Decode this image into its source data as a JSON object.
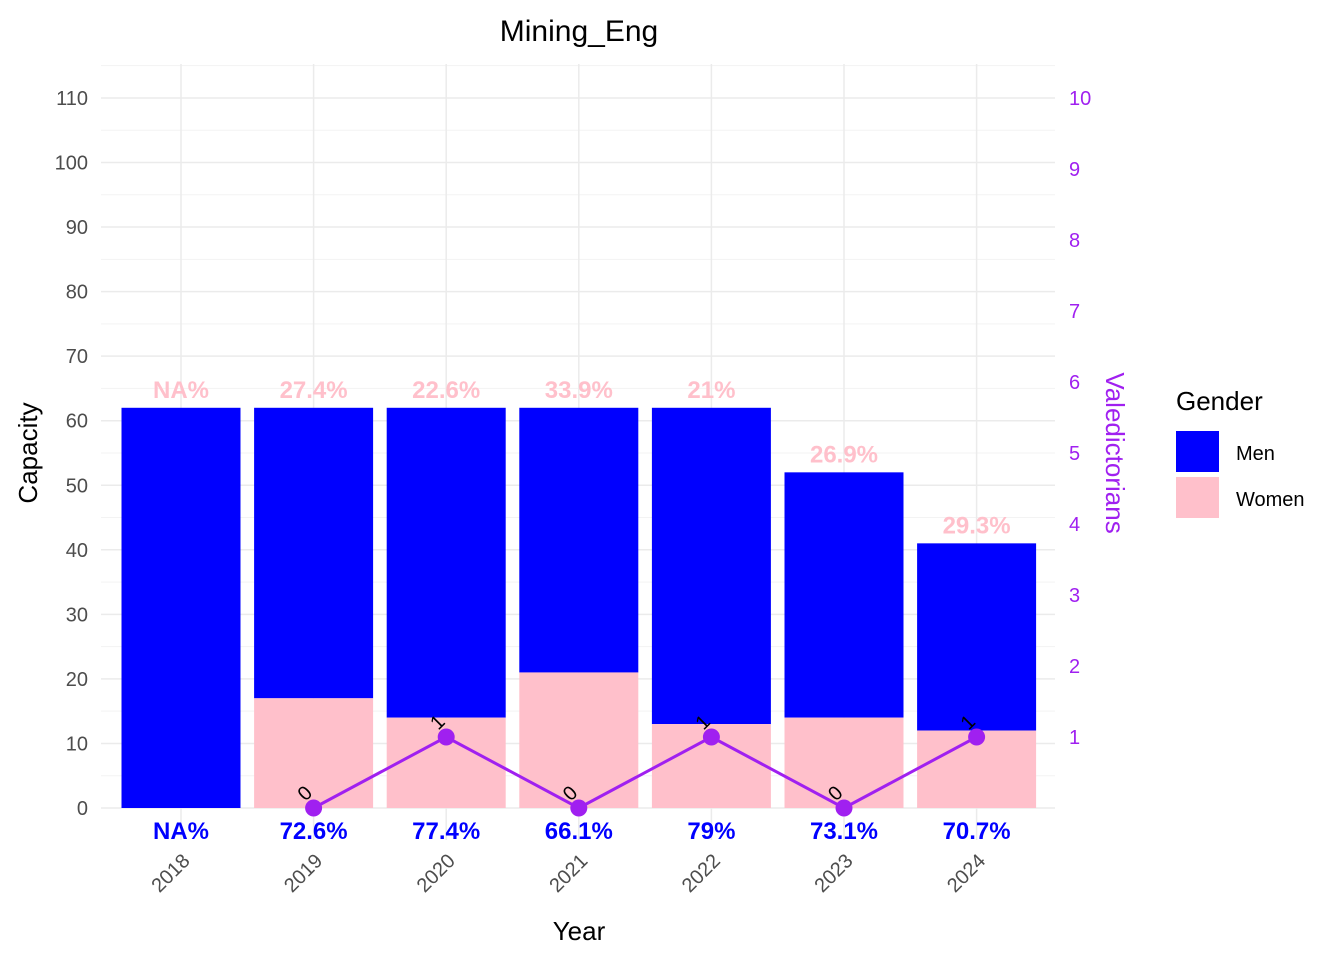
{
  "chart_data": {
    "type": "bar",
    "title": "Mining_Eng",
    "xlabel": "Year",
    "ylabel": "Capacity",
    "y2label": "Valedictorians",
    "categories": [
      "2018",
      "2019",
      "2020",
      "2021",
      "2022",
      "2023",
      "2024"
    ],
    "ylim": [
      0,
      110
    ],
    "yticks": [
      "0",
      "10",
      "20",
      "30",
      "40",
      "50",
      "60",
      "70",
      "80",
      "90",
      "100",
      "110"
    ],
    "y2lim": [
      0,
      10
    ],
    "y2ticks": [
      "1",
      "2",
      "3",
      "4",
      "5",
      "6",
      "7",
      "8",
      "9",
      "10"
    ],
    "series": [
      {
        "name": "Men",
        "values": [
          62,
          45,
          48,
          41,
          49,
          38,
          29
        ],
        "color": "#0000ff"
      },
      {
        "name": "Women",
        "values": [
          0,
          17,
          14,
          21,
          13,
          14,
          12
        ],
        "color": "#ffc0cb"
      }
    ],
    "totals": [
      62,
      62,
      62,
      62,
      62,
      52,
      41
    ],
    "women_pct_labels": [
      "NA%",
      "27.4%",
      "22.6%",
      "33.9%",
      "21%",
      "26.9%",
      "29.3%"
    ],
    "men_pct_labels": [
      "NA%",
      "72.6%",
      "77.4%",
      "66.1%",
      "79%",
      "73.1%",
      "70.7%"
    ],
    "valedictorians": {
      "categories": [
        "2019",
        "2020",
        "2021",
        "2022",
        "2023",
        "2024"
      ],
      "values": [
        0,
        1,
        0,
        1,
        0,
        1
      ],
      "labels": [
        "0",
        "1",
        "0",
        "1",
        "0",
        "1"
      ],
      "color": "#a020f0"
    },
    "legend": {
      "title": "Gender",
      "position": "right",
      "items": [
        {
          "label": "Men",
          "color": "#0000ff"
        },
        {
          "label": "Women",
          "color": "#ffc0cb"
        }
      ]
    },
    "grid": true
  }
}
